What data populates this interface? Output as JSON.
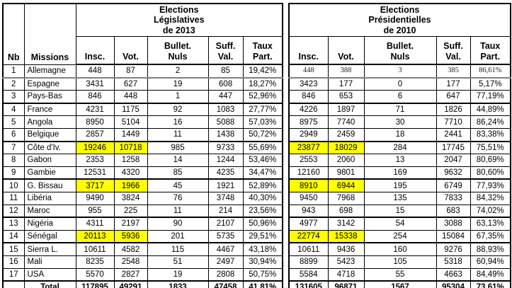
{
  "colors": {
    "highlight": "#ffff00",
    "border": "#000000",
    "freeze_separator": "#808080",
    "background": "#ffffff"
  },
  "left_table": {
    "title": "Elections\nLégislatives\nde 2013",
    "corner_headers": [
      "Nb",
      "Missions"
    ],
    "column_headers": [
      "Insc.",
      "Vot.",
      "Bullet.\nNuls",
      "Suff.\nVal.",
      "Taux\nPart."
    ],
    "rows": [
      {
        "nb": "1",
        "mission": "Allemagne",
        "insc": "448",
        "vot": "87",
        "nuls": "2",
        "suff": "85",
        "taux": "19,42%",
        "highlight": false,
        "sep": "gray"
      },
      {
        "nb": "2",
        "mission": "Espagne",
        "insc": "3431",
        "vot": "627",
        "nuls": "19",
        "suff": "608",
        "taux": "18,27%",
        "highlight": false
      },
      {
        "nb": "3",
        "mission": "Pays-Bas",
        "insc": "846",
        "vot": "448",
        "nuls": "1",
        "suff": "447",
        "taux": "52,96%",
        "highlight": false,
        "sep": "thick"
      },
      {
        "nb": "4",
        "mission": "France",
        "insc": "4231",
        "vot": "1175",
        "nuls": "92",
        "suff": "1083",
        "taux": "27,77%",
        "highlight": false
      },
      {
        "nb": "5",
        "mission": "Angola",
        "insc": "8950",
        "vot": "5104",
        "nuls": "16",
        "suff": "5088",
        "taux": "57,03%",
        "highlight": false
      },
      {
        "nb": "6",
        "mission": "Belgique",
        "insc": "2857",
        "vot": "1449",
        "nuls": "11",
        "suff": "1438",
        "taux": "50,72%",
        "highlight": false,
        "sep": "thick"
      },
      {
        "nb": "7",
        "mission": "Côte d'Iv.",
        "insc": "19246",
        "vot": "10718",
        "nuls": "985",
        "suff": "9733",
        "taux": "55,69%",
        "highlight": true
      },
      {
        "nb": "8",
        "mission": "Gabon",
        "insc": "2353",
        "vot": "1258",
        "nuls": "14",
        "suff": "1244",
        "taux": "53,46%",
        "highlight": false
      },
      {
        "nb": "9",
        "mission": "Gambie",
        "insc": "12531",
        "vot": "4320",
        "nuls": "85",
        "suff": "4235",
        "taux": "34,47%",
        "highlight": false,
        "sep": "thick"
      },
      {
        "nb": "10",
        "mission": "G. Bissau",
        "insc": "3717",
        "vot": "1966",
        "nuls": "45",
        "suff": "1921",
        "taux": "52,89%",
        "highlight": true
      },
      {
        "nb": "11",
        "mission": "Libéria",
        "insc": "9490",
        "vot": "3824",
        "nuls": "76",
        "suff": "3748",
        "taux": "40,30%",
        "highlight": false
      },
      {
        "nb": "12",
        "mission": "Maroc",
        "insc": "955",
        "vot": "225",
        "nuls": "11",
        "suff": "214",
        "taux": "23,56%",
        "highlight": false,
        "sep": "thick"
      },
      {
        "nb": "13",
        "mission": "Nigéria",
        "insc": "4311",
        "vot": "2197",
        "nuls": "90",
        "suff": "2107",
        "taux": "50,96%",
        "highlight": false
      },
      {
        "nb": "14",
        "mission": "Sénégal",
        "insc": "20113",
        "vot": "5936",
        "nuls": "201",
        "suff": "5735",
        "taux": "29,51%",
        "highlight": true,
        "sep": "thick"
      },
      {
        "nb": "15",
        "mission": "Sierra L.",
        "insc": "10611",
        "vot": "4582",
        "nuls": "115",
        "suff": "4467",
        "taux": "43,18%",
        "highlight": false
      },
      {
        "nb": "16",
        "mission": "Mali",
        "insc": "8235",
        "vot": "2548",
        "nuls": "51",
        "suff": "2497",
        "taux": "30,94%",
        "highlight": false
      },
      {
        "nb": "17",
        "mission": "USA",
        "insc": "5570",
        "vot": "2827",
        "nuls": "19",
        "suff": "2808",
        "taux": "50,75%",
        "highlight": false
      }
    ],
    "total": {
      "label": "Total",
      "insc": "117895",
      "vot": "49291",
      "nuls": "1833",
      "suff": "47458",
      "taux": "41,81%"
    }
  },
  "right_table": {
    "title": "Elections\nPrésidentielles\nde 2010",
    "column_headers": [
      "Insc.",
      "Vot.",
      "Bullet.\nNuls",
      "Suff.\nVal.",
      "Taux\nPart."
    ],
    "rows": [
      {
        "insc": "448",
        "vot": "388",
        "nuls": "3",
        "suff": "385",
        "taux": "86,61%",
        "highlight": false,
        "sep": "gray",
        "serif": true
      },
      {
        "insc": "3423",
        "vot": "177",
        "nuls": "0",
        "suff": "177",
        "taux": "5,17%",
        "highlight": false
      },
      {
        "insc": "846",
        "vot": "653",
        "nuls": "6",
        "suff": "647",
        "taux": "77,19%",
        "highlight": false,
        "sep": "thick"
      },
      {
        "insc": "4226",
        "vot": "1897",
        "nuls": "71",
        "suff": "1826",
        "taux": "44,89%",
        "highlight": false
      },
      {
        "insc": "8975",
        "vot": "7740",
        "nuls": "30",
        "suff": "7710",
        "taux": "86,24%",
        "highlight": false
      },
      {
        "insc": "2949",
        "vot": "2459",
        "nuls": "18",
        "suff": "2441",
        "taux": "83,38%",
        "highlight": false,
        "sep": "thick"
      },
      {
        "insc": "23877",
        "vot": "18029",
        "nuls": "284",
        "suff": "17745",
        "taux": "75,51%",
        "highlight": true
      },
      {
        "insc": "2553",
        "vot": "2060",
        "nuls": "13",
        "suff": "2047",
        "taux": "80,69%",
        "highlight": false
      },
      {
        "insc": "12160",
        "vot": "9801",
        "nuls": "169",
        "suff": "9632",
        "taux": "80,60%",
        "highlight": false,
        "sep": "thick"
      },
      {
        "insc": "8910",
        "vot": "6944",
        "nuls": "195",
        "suff": "6749",
        "taux": "77,93%",
        "highlight": true
      },
      {
        "insc": "9450",
        "vot": "7968",
        "nuls": "135",
        "suff": "7833",
        "taux": "84,32%",
        "highlight": false
      },
      {
        "insc": "943",
        "vot": "698",
        "nuls": "15",
        "suff": "683",
        "taux": "74,02%",
        "highlight": false,
        "sep": "thick"
      },
      {
        "insc": "4977",
        "vot": "3142",
        "nuls": "54",
        "suff": "3088",
        "taux": "63,13%",
        "highlight": false
      },
      {
        "insc": "22774",
        "vot": "15338",
        "nuls": "254",
        "suff": "15084",
        "taux": "67,35%",
        "highlight": true,
        "sep": "thick"
      },
      {
        "insc": "10611",
        "vot": "9436",
        "nuls": "160",
        "suff": "9276",
        "taux": "88,93%",
        "highlight": false
      },
      {
        "insc": "8899",
        "vot": "5423",
        "nuls": "105",
        "suff": "5318",
        "taux": "60,94%",
        "highlight": false
      },
      {
        "insc": "5584",
        "vot": "4718",
        "nuls": "55",
        "suff": "4663",
        "taux": "84,49%",
        "highlight": false
      }
    ],
    "total": {
      "label": "",
      "insc": "131605",
      "vot": "96871",
      "nuls": "1567",
      "suff": "95304",
      "taux": "73,61%"
    }
  }
}
